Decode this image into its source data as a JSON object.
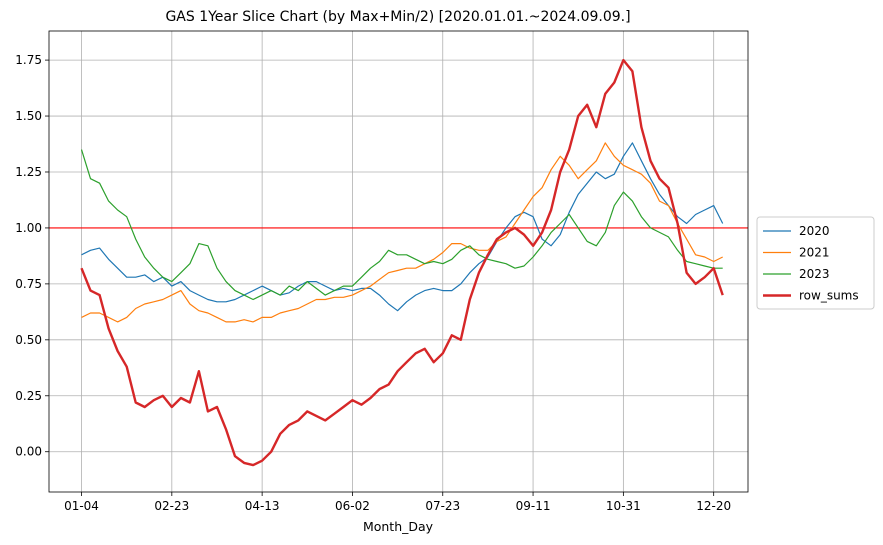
{
  "chart_data": {
    "type": "line",
    "title": "GAS 1Year Slice Chart (by Max+Min/2) [2020.01.01.~2024.09.09.]",
    "xlabel": "Month_Day",
    "ylabel": "",
    "x_ticks": [
      "01-04",
      "02-23",
      "04-13",
      "06-02",
      "07-23",
      "09-11",
      "10-31",
      "12-20"
    ],
    "x_tick_days": [
      0,
      50,
      100,
      150,
      200,
      250,
      300,
      350
    ],
    "x_range": [
      -18,
      369
    ],
    "y_ticks": [
      0.0,
      0.25,
      0.5,
      0.75,
      1.0,
      1.25,
      1.5,
      1.75
    ],
    "ylim": [
      -0.18,
      1.88
    ],
    "grid": true,
    "legend_position": "center-right",
    "reference_line": {
      "y": 1.0,
      "color": "#ff0000"
    },
    "series": [
      {
        "name": "2020",
        "color": "#1f77b4",
        "width": 1.2,
        "x": [
          0,
          5,
          10,
          15,
          20,
          25,
          30,
          35,
          40,
          45,
          50,
          55,
          60,
          65,
          70,
          75,
          80,
          85,
          90,
          95,
          100,
          105,
          110,
          115,
          120,
          125,
          130,
          135,
          140,
          145,
          150,
          155,
          160,
          165,
          170,
          175,
          180,
          185,
          190,
          195,
          200,
          205,
          210,
          215,
          220,
          225,
          230,
          235,
          240,
          245,
          250,
          255,
          260,
          265,
          270,
          275,
          280,
          285,
          290,
          295,
          300,
          305,
          310,
          315,
          320,
          325,
          330,
          335,
          340,
          345,
          350,
          355
        ],
        "y": [
          0.88,
          0.9,
          0.91,
          0.86,
          0.82,
          0.78,
          0.78,
          0.79,
          0.76,
          0.78,
          0.74,
          0.76,
          0.72,
          0.7,
          0.68,
          0.67,
          0.67,
          0.68,
          0.7,
          0.72,
          0.74,
          0.72,
          0.7,
          0.71,
          0.74,
          0.76,
          0.76,
          0.74,
          0.72,
          0.73,
          0.72,
          0.73,
          0.73,
          0.7,
          0.66,
          0.63,
          0.67,
          0.7,
          0.72,
          0.73,
          0.72,
          0.72,
          0.75,
          0.8,
          0.84,
          0.87,
          0.94,
          1.0,
          1.05,
          1.07,
          1.05,
          0.95,
          0.92,
          0.97,
          1.07,
          1.15,
          1.2,
          1.25,
          1.22,
          1.24,
          1.32,
          1.38,
          1.3,
          1.22,
          1.15,
          1.1,
          1.05,
          1.02,
          1.06,
          1.08,
          1.1,
          1.02
        ]
      },
      {
        "name": "2021",
        "color": "#ff7f0e",
        "width": 1.2,
        "x": [
          0,
          5,
          10,
          15,
          20,
          25,
          30,
          35,
          40,
          45,
          50,
          55,
          60,
          65,
          70,
          75,
          80,
          85,
          90,
          95,
          100,
          105,
          110,
          115,
          120,
          125,
          130,
          135,
          140,
          145,
          150,
          155,
          160,
          165,
          170,
          175,
          180,
          185,
          190,
          195,
          200,
          205,
          210,
          215,
          220,
          225,
          230,
          235,
          240,
          245,
          250,
          255,
          260,
          265,
          270,
          275,
          280,
          285,
          290,
          295,
          300,
          305,
          310,
          315,
          320,
          325,
          330,
          335,
          340,
          345,
          350,
          355
        ],
        "y": [
          0.6,
          0.62,
          0.62,
          0.6,
          0.58,
          0.6,
          0.64,
          0.66,
          0.67,
          0.68,
          0.7,
          0.72,
          0.66,
          0.63,
          0.62,
          0.6,
          0.58,
          0.58,
          0.59,
          0.58,
          0.6,
          0.6,
          0.62,
          0.63,
          0.64,
          0.66,
          0.68,
          0.68,
          0.69,
          0.69,
          0.7,
          0.72,
          0.74,
          0.77,
          0.8,
          0.81,
          0.82,
          0.82,
          0.84,
          0.86,
          0.89,
          0.93,
          0.93,
          0.91,
          0.9,
          0.9,
          0.94,
          0.96,
          1.02,
          1.08,
          1.14,
          1.18,
          1.26,
          1.32,
          1.28,
          1.22,
          1.26,
          1.3,
          1.38,
          1.32,
          1.28,
          1.26,
          1.24,
          1.2,
          1.12,
          1.1,
          1.02,
          0.95,
          0.88,
          0.87,
          0.85,
          0.87
        ]
      },
      {
        "name": "2023",
        "color": "#2ca02c",
        "width": 1.2,
        "x": [
          0,
          5,
          10,
          15,
          20,
          25,
          30,
          35,
          40,
          45,
          50,
          55,
          60,
          65,
          70,
          75,
          80,
          85,
          90,
          95,
          100,
          105,
          110,
          115,
          120,
          125,
          130,
          135,
          140,
          145,
          150,
          155,
          160,
          165,
          170,
          175,
          180,
          185,
          190,
          195,
          200,
          205,
          210,
          215,
          220,
          225,
          230,
          235,
          240,
          245,
          250,
          255,
          260,
          265,
          270,
          275,
          280,
          285,
          290,
          295,
          300,
          305,
          310,
          315,
          320,
          325,
          330,
          335,
          340,
          345,
          350,
          355
        ],
        "y": [
          1.35,
          1.22,
          1.2,
          1.12,
          1.08,
          1.05,
          0.95,
          0.87,
          0.82,
          0.78,
          0.76,
          0.8,
          0.84,
          0.93,
          0.92,
          0.82,
          0.76,
          0.72,
          0.7,
          0.68,
          0.7,
          0.72,
          0.7,
          0.74,
          0.72,
          0.76,
          0.73,
          0.7,
          0.72,
          0.74,
          0.74,
          0.78,
          0.82,
          0.85,
          0.9,
          0.88,
          0.88,
          0.86,
          0.84,
          0.85,
          0.84,
          0.86,
          0.9,
          0.92,
          0.88,
          0.86,
          0.85,
          0.84,
          0.82,
          0.83,
          0.87,
          0.92,
          0.98,
          1.02,
          1.06,
          1.0,
          0.94,
          0.92,
          0.98,
          1.1,
          1.16,
          1.12,
          1.05,
          1.0,
          0.98,
          0.96,
          0.9,
          0.85,
          0.84,
          0.83,
          0.82,
          0.82
        ]
      },
      {
        "name": "row_sums",
        "color": "#d62728",
        "width": 2.4,
        "x": [
          0,
          5,
          10,
          15,
          20,
          25,
          30,
          35,
          40,
          45,
          50,
          55,
          60,
          65,
          70,
          75,
          80,
          85,
          90,
          95,
          100,
          105,
          110,
          115,
          120,
          125,
          130,
          135,
          140,
          145,
          150,
          155,
          160,
          165,
          170,
          175,
          180,
          185,
          190,
          195,
          200,
          205,
          210,
          215,
          220,
          225,
          230,
          235,
          240,
          245,
          250,
          255,
          260,
          265,
          270,
          275,
          280,
          285,
          290,
          295,
          300,
          305,
          310,
          315,
          320,
          325,
          330,
          335,
          340,
          345,
          350,
          355
        ],
        "y": [
          0.82,
          0.72,
          0.7,
          0.55,
          0.45,
          0.38,
          0.22,
          0.2,
          0.23,
          0.25,
          0.2,
          0.24,
          0.22,
          0.36,
          0.18,
          0.2,
          0.1,
          -0.02,
          -0.05,
          -0.06,
          -0.04,
          0.0,
          0.08,
          0.12,
          0.14,
          0.18,
          0.16,
          0.14,
          0.17,
          0.2,
          0.23,
          0.21,
          0.24,
          0.28,
          0.3,
          0.36,
          0.4,
          0.44,
          0.46,
          0.4,
          0.44,
          0.52,
          0.5,
          0.68,
          0.8,
          0.88,
          0.95,
          0.98,
          1.0,
          0.97,
          0.92,
          0.98,
          1.08,
          1.25,
          1.35,
          1.5,
          1.55,
          1.45,
          1.6,
          1.65,
          1.75,
          1.7,
          1.45,
          1.3,
          1.22,
          1.18,
          1.02,
          0.8,
          0.75,
          0.78,
          0.82,
          0.7
        ]
      }
    ]
  }
}
